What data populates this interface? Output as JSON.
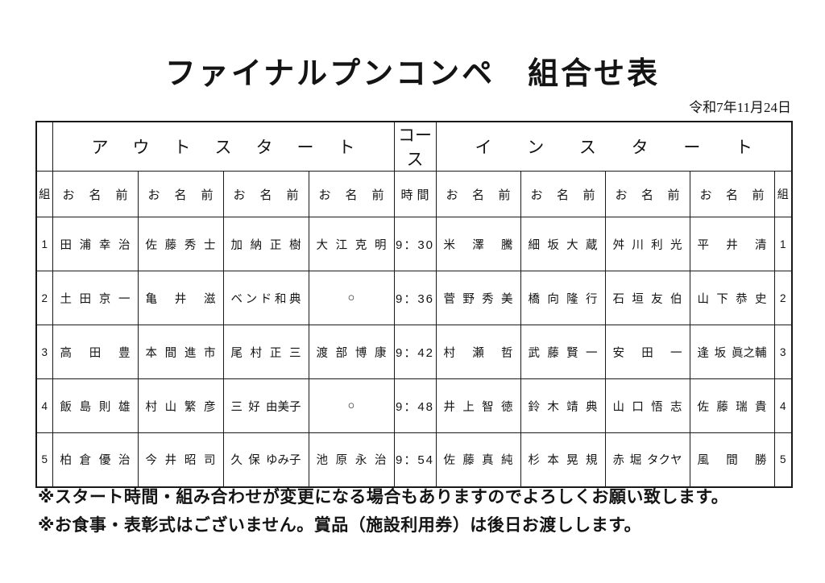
{
  "page": {
    "title": "ファイナルプンコンペ　組合せ表",
    "date": "令和7年11月24日",
    "notes": [
      "※スタート時間・組み合わせが変更になる場合もありますのでよろしくお願い致します。",
      "※お食事・表彰式はございません。賞品（施設利用券）は後日お渡しします。"
    ]
  },
  "table": {
    "headers": {
      "out_start": "ア　ウ　ト　ス　タ　ー　ト",
      "course": "コース",
      "in_start": "イ　ン　ス　タ　ー　ト",
      "group": "組",
      "name": "お　名　前",
      "time": "時　間"
    },
    "rows": [
      {
        "group": "1",
        "out_names": [
          "田　浦　幸　治",
          "佐　藤　秀　士",
          "加　納　正　樹",
          "大　江　克　明"
        ],
        "time": "9：30",
        "in_names": [
          "米　澤　騰",
          "細　坂　大　蔵",
          "舛　川　利　光",
          "平　井　清"
        ]
      },
      {
        "group": "2",
        "out_names": [
          "土　田　京　一",
          "亀　井　滋",
          "ベ　ン　ド　和　典",
          "○"
        ],
        "time": "9：36",
        "in_names": [
          "菅　野　秀　美",
          "橋　向　隆　行",
          "石　垣　友　伯",
          "山　下　恭　史"
        ]
      },
      {
        "group": "3",
        "out_names": [
          "高　田　豊",
          "本　間　進　市",
          "尾　村　正　三",
          "渡　部　博　康"
        ],
        "time": "9：42",
        "in_names": [
          "村　瀬　哲",
          "武　藤　賢　一",
          "安　田　一",
          "逢　坂　眞之輔"
        ]
      },
      {
        "group": "4",
        "out_names": [
          "飯　島　則　雄",
          "村　山　繁　彦",
          "三　好　由美子",
          "○"
        ],
        "time": "9：48",
        "in_names": [
          "井　上　智　徳",
          "鈴　木　靖　典",
          "山　口　悟　志",
          "佐　藤　瑞　貴"
        ]
      },
      {
        "group": "5",
        "out_names": [
          "柏　倉　優　治",
          "今　井　昭　司",
          "久　保　ゆみ子",
          "池　原　永　治"
        ],
        "time": "9：54",
        "in_names": [
          "佐　藤　真　純",
          "杉　本　晃　規",
          "赤　堀　タクヤ",
          "風　間　勝"
        ]
      }
    ]
  }
}
